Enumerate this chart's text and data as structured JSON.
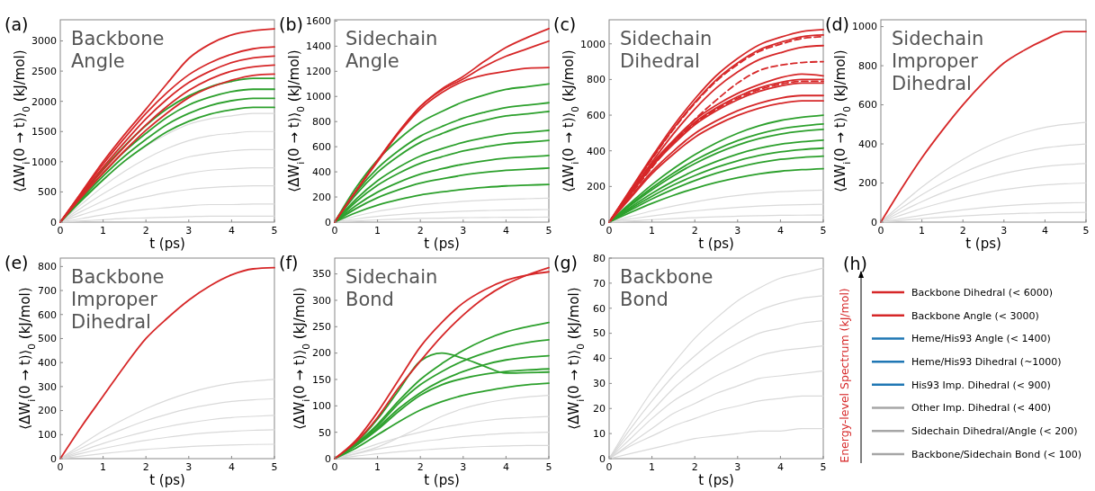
{
  "chart_data": [
    {
      "type": "line",
      "title": "(a)",
      "subtitle": "Backbone Angle",
      "xlabel": "t (ps)",
      "ylabel": "⟨ΔW$_{i}$(0 → t)⟩$_{0}$ (kJ/mol)",
      "x": [
        0,
        0.5,
        1,
        1.5,
        2,
        2.5,
        3,
        3.5,
        4,
        4.5,
        5
      ],
      "xlim": [
        0,
        5
      ],
      "xticks": [
        0,
        1,
        2,
        3,
        4,
        5
      ],
      "ylim": [
        0,
        3350
      ],
      "yticks": [
        0,
        500,
        1000,
        1500,
        2000,
        2500,
        3000
      ],
      "series": [
        {
          "color": "#d9d9d9",
          "values": [
            0,
            360,
            700,
            1010,
            1260,
            1460,
            1620,
            1710,
            1760,
            1800,
            1800
          ]
        },
        {
          "color": "#d9d9d9",
          "values": [
            0,
            300,
            590,
            840,
            1050,
            1220,
            1350,
            1430,
            1470,
            1500,
            1500
          ]
        },
        {
          "color": "#d9d9d9",
          "values": [
            0,
            240,
            470,
            670,
            840,
            970,
            1080,
            1140,
            1180,
            1200,
            1200
          ]
        },
        {
          "color": "#d9d9d9",
          "values": [
            0,
            180,
            350,
            500,
            630,
            730,
            810,
            860,
            880,
            900,
            900
          ]
        },
        {
          "color": "#d9d9d9",
          "values": [
            0,
            120,
            230,
            340,
            420,
            490,
            540,
            570,
            590,
            600,
            600
          ]
        },
        {
          "color": "#d9d9d9",
          "values": [
            0,
            60,
            120,
            170,
            210,
            240,
            270,
            290,
            290,
            300,
            300
          ]
        },
        {
          "color": "#d9d9d9",
          "values": [
            0,
            20,
            40,
            60,
            70,
            80,
            90,
            100,
            100,
            100,
            100
          ]
        },
        {
          "color": "#2ca02c",
          "values": [
            0,
            450,
            880,
            1260,
            1600,
            1880,
            2090,
            2240,
            2330,
            2380,
            2380
          ]
        },
        {
          "color": "#2ca02c",
          "values": [
            0,
            420,
            810,
            1170,
            1470,
            1740,
            1940,
            2070,
            2160,
            2200,
            2200
          ]
        },
        {
          "color": "#2ca02c",
          "values": [
            0,
            390,
            760,
            1090,
            1370,
            1620,
            1800,
            1930,
            2010,
            2050,
            2050
          ]
        },
        {
          "color": "#2ca02c",
          "values": [
            0,
            360,
            700,
            1010,
            1270,
            1500,
            1670,
            1790,
            1860,
            1900,
            1900
          ]
        },
        {
          "color": "#d62728",
          "values": [
            0,
            500,
            1000,
            1450,
            1870,
            2300,
            2710,
            2950,
            3100,
            3170,
            3200
          ]
        },
        {
          "color": "#d62728",
          "values": [
            0,
            490,
            960,
            1390,
            1800,
            2150,
            2440,
            2640,
            2780,
            2870,
            2900
          ]
        },
        {
          "color": "#d62728",
          "values": [
            0,
            470,
            910,
            1320,
            1710,
            2040,
            2310,
            2500,
            2640,
            2720,
            2750
          ]
        },
        {
          "color": "#d62728",
          "values": [
            0,
            440,
            860,
            1250,
            1610,
            1920,
            2180,
            2370,
            2500,
            2570,
            2600
          ]
        },
        {
          "color": "#d62728",
          "values": [
            0,
            420,
            810,
            1180,
            1520,
            1810,
            2060,
            2230,
            2350,
            2430,
            2450
          ]
        }
      ]
    },
    {
      "type": "line",
      "title": "(b)",
      "subtitle": "Sidechain Angle",
      "xlabel": "t (ps)",
      "ylabel": "⟨ΔW$_{i}$(0 → t)⟩$_{0}$ (kJ/mol)",
      "x": [
        0,
        0.5,
        1,
        1.5,
        2,
        2.5,
        3,
        3.5,
        4,
        4.5,
        5
      ],
      "xlim": [
        0,
        5
      ],
      "xticks": [
        0,
        1,
        2,
        3,
        4,
        5
      ],
      "ylim": [
        0,
        1610
      ],
      "yticks": [
        0,
        200,
        400,
        600,
        800,
        1000,
        1200,
        1400,
        1600
      ],
      "series": [
        {
          "color": "#d9d9d9",
          "values": [
            0,
            48,
            86,
            114,
            137,
            152,
            165,
            175,
            182,
            186,
            190
          ]
        },
        {
          "color": "#d9d9d9",
          "values": [
            0,
            25,
            45,
            60,
            72,
            80,
            87,
            92,
            96,
            98,
            100
          ]
        },
        {
          "color": "#d9d9d9",
          "values": [
            0,
            10,
            18,
            24,
            29,
            32,
            35,
            37,
            38,
            39,
            40
          ]
        },
        {
          "color": "#2ca02c",
          "values": [
            0,
            275,
            495,
            660,
            792,
            880,
            957,
            1012,
            1056,
            1078,
            1100
          ]
        },
        {
          "color": "#2ca02c",
          "values": [
            0,
            238,
            428,
            570,
            684,
            760,
            827,
            874,
            912,
            931,
            950
          ]
        },
        {
          "color": "#2ca02c",
          "values": [
            0,
            220,
            396,
            528,
            634,
            704,
            766,
            810,
            845,
            862,
            880
          ]
        },
        {
          "color": "#2ca02c",
          "values": [
            0,
            183,
            329,
            438,
            526,
            584,
            635,
            672,
            701,
            715,
            730
          ]
        },
        {
          "color": "#2ca02c",
          "values": [
            0,
            163,
            293,
            390,
            468,
            520,
            566,
            598,
            624,
            637,
            650
          ]
        },
        {
          "color": "#2ca02c",
          "values": [
            0,
            133,
            239,
            318,
            382,
            424,
            461,
            488,
            509,
            519,
            530
          ]
        },
        {
          "color": "#2ca02c",
          "values": [
            0,
            108,
            194,
            258,
            310,
            344,
            374,
            396,
            413,
            421,
            430
          ]
        },
        {
          "color": "#2ca02c",
          "values": [
            0,
            75,
            135,
            180,
            216,
            240,
            261,
            276,
            288,
            294,
            300
          ]
        },
        {
          "color": "#d62728",
          "values": [
            0,
            250,
            490,
            720,
            920,
            1060,
            1160,
            1280,
            1390,
            1470,
            1540
          ]
        },
        {
          "color": "#d62728",
          "values": [
            0,
            250,
            490,
            720,
            920,
            1050,
            1140,
            1240,
            1320,
            1380,
            1440
          ]
        },
        {
          "color": "#d62728",
          "values": [
            0,
            245,
            480,
            710,
            900,
            1030,
            1120,
            1170,
            1200,
            1225,
            1230
          ]
        }
      ]
    },
    {
      "type": "line",
      "title": "(c)",
      "subtitle": "Sidechain Dihedral",
      "xlabel": "t (ps)",
      "ylabel": "⟨ΔW$_{i}$(0 → t)⟩$_{0}$ (kJ/mol)",
      "x": [
        0,
        0.5,
        1,
        1.5,
        2,
        2.5,
        3,
        3.5,
        4,
        4.5,
        5
      ],
      "xlim": [
        0,
        5
      ],
      "xticks": [
        0,
        1,
        2,
        3,
        4,
        5
      ],
      "ylim": [
        0,
        1135
      ],
      "yticks": [
        0,
        200,
        400,
        600,
        800,
        1000
      ],
      "series": [
        {
          "color": "#d9d9d9",
          "values": [
            0,
            32,
            63,
            90,
            113,
            133,
            149,
            162,
            171,
            176,
            180
          ]
        },
        {
          "color": "#d9d9d9",
          "values": [
            0,
            18,
            35,
            50,
            63,
            74,
            83,
            90,
            95,
            98,
            100
          ]
        },
        {
          "color": "#d9d9d9",
          "values": [
            0,
            7,
            14,
            20,
            25,
            30,
            33,
            36,
            38,
            39,
            40
          ]
        },
        {
          "color": "#2ca02c",
          "values": [
            0,
            108,
            210,
            300,
            378,
            444,
            498,
            540,
            570,
            588,
            600
          ]
        },
        {
          "color": "#2ca02c",
          "values": [
            0,
            99,
            193,
            275,
            347,
            407,
            457,
            495,
            523,
            539,
            550
          ]
        },
        {
          "color": "#2ca02c",
          "values": [
            0,
            94,
            182,
            260,
            328,
            385,
            432,
            468,
            494,
            510,
            520
          ]
        },
        {
          "color": "#2ca02c",
          "values": [
            0,
            83,
            161,
            230,
            290,
            340,
            382,
            414,
            437,
            451,
            460
          ]
        },
        {
          "color": "#2ca02c",
          "values": [
            0,
            75,
            145,
            208,
            261,
            307,
            344,
            374,
            394,
            407,
            415
          ]
        },
        {
          "color": "#2ca02c",
          "values": [
            0,
            67,
            130,
            185,
            233,
            274,
            307,
            333,
            352,
            363,
            370
          ]
        },
        {
          "color": "#2ca02c",
          "values": [
            0,
            54,
            105,
            150,
            189,
            222,
            249,
            270,
            285,
            294,
            300
          ]
        },
        {
          "color": "#d62728",
          "values": [
            0,
            184,
            367,
            540,
            691,
            821,
            918,
            994,
            1037,
            1069,
            1080
          ]
        },
        {
          "color": "#d62728",
          "values": [
            0,
            179,
            357,
            525,
            672,
            798,
            893,
            966,
            1008,
            1040,
            1050
          ]
        },
        {
          "color": "#d62728",
          "values": [
            0,
            168,
            337,
            495,
            634,
            752,
            842,
            911,
            950,
            980,
            990
          ]
        },
        {
          "color": "#d62728",
          "values": [
            0,
            164,
            328,
            459,
            574,
            656,
            722,
            771,
            810,
            830,
            820
          ]
        },
        {
          "color": "#d62728",
          "values": [
            0,
            160,
            320,
            448,
            560,
            640,
            704,
            752,
            784,
            800,
            800
          ]
        },
        {
          "color": "#d62728",
          "values": [
            0,
            156,
            312,
            437,
            546,
            624,
            686,
            733,
            764,
            780,
            780
          ]
        },
        {
          "color": "#d62728",
          "values": [
            0,
            142,
            284,
            398,
            497,
            568,
            625,
            667,
            696,
            710,
            710
          ]
        },
        {
          "color": "#d62728",
          "values": [
            0,
            136,
            272,
            381,
            476,
            544,
            598,
            639,
            666,
            680,
            680
          ]
        },
        {
          "color": "#d62728",
          "line_style": "dashed",
          "values": [
            0,
            177,
            354,
            520,
            666,
            790,
            884,
            957,
            998,
            1030,
            1040
          ]
        },
        {
          "color": "#d62728",
          "line_style": "dashed",
          "values": [
            0,
            153,
            306,
            450,
            576,
            684,
            780,
            850,
            880,
            895,
            900
          ]
        },
        {
          "color": "#d62728",
          "line_style": "dashed",
          "values": [
            0,
            158,
            316,
            442,
            553,
            632,
            695,
            743,
            774,
            790,
            790
          ]
        }
      ]
    },
    {
      "type": "line",
      "title": "(d)",
      "subtitle": "Sidechain Improper Dihedral",
      "xlabel": "t (ps)",
      "ylabel": "⟨ΔW$_{i}$(0 → t)⟩$_{0}$ (kJ/mol)",
      "x": [
        0,
        0.5,
        1,
        1.5,
        2,
        2.5,
        3,
        3.5,
        4,
        4.5,
        5
      ],
      "xlim": [
        0,
        5
      ],
      "xticks": [
        0,
        1,
        2,
        3,
        4,
        5
      ],
      "ylim": [
        0,
        1035
      ],
      "yticks": [
        0,
        200,
        400,
        600,
        800,
        1000
      ],
      "series": [
        {
          "color": "#d9d9d9",
          "values": [
            0,
            92,
            179,
            255,
            321,
            377,
            423,
            459,
            485,
            500,
            510
          ]
        },
        {
          "color": "#d9d9d9",
          "values": [
            0,
            72,
            140,
            200,
            252,
            296,
            332,
            360,
            380,
            392,
            400
          ]
        },
        {
          "color": "#d9d9d9",
          "values": [
            0,
            54,
            105,
            150,
            189,
            222,
            249,
            270,
            285,
            294,
            300
          ]
        },
        {
          "color": "#d9d9d9",
          "values": [
            0,
            36,
            70,
            100,
            126,
            148,
            166,
            180,
            190,
            196,
            200
          ]
        },
        {
          "color": "#d9d9d9",
          "values": [
            0,
            18,
            35,
            50,
            63,
            74,
            83,
            90,
            95,
            98,
            100
          ]
        },
        {
          "color": "#d9d9d9",
          "values": [
            0,
            9,
            18,
            25,
            32,
            37,
            42,
            45,
            48,
            49,
            50
          ]
        },
        {
          "color": "#d62728",
          "values": [
            0,
            170,
            329,
            470,
            600,
            715,
            814,
            880,
            933,
            975,
            975
          ]
        }
      ]
    },
    {
      "type": "line",
      "title": "(e)",
      "subtitle": "Backbone Improper Dihedral",
      "xlabel": "t (ps)",
      "ylabel": "⟨ΔW$_{i}$(0 → t)⟩$_{0}$ (kJ/mol)",
      "x": [
        0,
        0.5,
        1,
        1.5,
        2,
        2.5,
        3,
        3.5,
        4,
        4.5,
        5
      ],
      "xlim": [
        0,
        5
      ],
      "xticks": [
        0,
        1,
        2,
        3,
        4,
        5
      ],
      "ylim": [
        0,
        835
      ],
      "yticks": [
        0,
        100,
        200,
        300,
        400,
        500,
        600,
        700,
        800
      ],
      "series": [
        {
          "color": "#d9d9d9",
          "values": [
            0,
            59,
            116,
            165,
            208,
            244,
            274,
            297,
            314,
            323,
            330
          ]
        },
        {
          "color": "#d9d9d9",
          "values": [
            0,
            45,
            88,
            125,
            158,
            185,
            208,
            225,
            238,
            245,
            250
          ]
        },
        {
          "color": "#d9d9d9",
          "values": [
            0,
            32,
            63,
            90,
            113,
            133,
            149,
            162,
            171,
            176,
            180
          ]
        },
        {
          "color": "#d9d9d9",
          "values": [
            0,
            22,
            42,
            60,
            76,
            89,
            100,
            108,
            114,
            118,
            120
          ]
        },
        {
          "color": "#d9d9d9",
          "values": [
            0,
            11,
            21,
            30,
            38,
            44,
            50,
            54,
            57,
            59,
            60
          ]
        },
        {
          "color": "#d62728",
          "values": [
            0,
            135,
            260,
            385,
            500,
            585,
            660,
            720,
            765,
            790,
            795
          ]
        }
      ]
    },
    {
      "type": "line",
      "title": "(f)",
      "subtitle": "Sidechain Bond",
      "xlabel": "t (ps)",
      "ylabel": "⟨ΔW$_{i}$(0 → t)⟩$_{0}$ (kJ/mol)",
      "x": [
        0,
        0.5,
        1,
        1.5,
        2,
        2.5,
        3,
        3.5,
        4,
        4.5,
        5
      ],
      "xlim": [
        0,
        5
      ],
      "xticks": [
        0,
        1,
        2,
        3,
        4,
        5
      ],
      "ylim": [
        0,
        380
      ],
      "yticks": [
        0,
        50,
        100,
        150,
        200,
        250,
        300,
        350
      ],
      "series": [
        {
          "color": "#d9d9d9",
          "values": [
            0,
            10,
            22,
            40,
            60,
            80,
            95,
            105,
            112,
            117,
            120
          ]
        },
        {
          "color": "#d9d9d9",
          "values": [
            0,
            14,
            28,
            40,
            50,
            59,
            66,
            72,
            76,
            78,
            80
          ]
        },
        {
          "color": "#d9d9d9",
          "values": [
            0,
            9,
            18,
            25,
            32,
            37,
            42,
            45,
            48,
            49,
            50
          ]
        },
        {
          "color": "#d9d9d9",
          "values": [
            0,
            5,
            9,
            13,
            16,
            19,
            21,
            23,
            24,
            25,
            25
          ]
        },
        {
          "color": "#2ca02c",
          "values": [
            0,
            28,
            65,
            110,
            150,
            180,
            205,
            225,
            240,
            250,
            258
          ]
        },
        {
          "color": "#2ca02c",
          "values": [
            0,
            27,
            62,
            105,
            140,
            165,
            185,
            200,
            212,
            220,
            225
          ]
        },
        {
          "color": "#2ca02c",
          "values": [
            0,
            25,
            58,
            95,
            125,
            148,
            165,
            178,
            187,
            192,
            195
          ]
        },
        {
          "color": "#2ca02c",
          "values": [
            0,
            30,
            75,
            130,
            185,
            200,
            190,
            175,
            162,
            163,
            164
          ]
        },
        {
          "color": "#2ca02c",
          "values": [
            0,
            25,
            55,
            90,
            120,
            140,
            152,
            160,
            165,
            168,
            170
          ]
        },
        {
          "color": "#2ca02c",
          "values": [
            0,
            20,
            45,
            70,
            92,
            108,
            120,
            128,
            135,
            140,
            143
          ]
        },
        {
          "color": "#d62728",
          "values": [
            0,
            35,
            88,
            150,
            212,
            258,
            295,
            320,
            338,
            348,
            354
          ]
        },
        {
          "color": "#d62728",
          "values": [
            0,
            32,
            78,
            135,
            185,
            232,
            272,
            305,
            330,
            348,
            362
          ]
        }
      ]
    },
    {
      "type": "line",
      "title": "(g)",
      "subtitle": "Backbone Bond",
      "xlabel": "t (ps)",
      "ylabel": "⟨ΔW$_{i}$(0 → t)⟩$_{0}$ (kJ/mol)",
      "x": [
        0,
        0.5,
        1,
        1.5,
        2,
        2.5,
        3,
        3.5,
        4,
        4.5,
        5
      ],
      "xlim": [
        0,
        5
      ],
      "xticks": [
        0,
        1,
        2,
        3,
        4,
        5
      ],
      "ylim": [
        0,
        80
      ],
      "yticks": [
        0,
        10,
        20,
        30,
        40,
        50,
        60,
        70,
        80
      ],
      "series": [
        {
          "color": "#d9d9d9",
          "values": [
            0,
            14,
            27,
            38,
            48,
            56,
            63,
            68,
            72,
            74,
            76
          ]
        },
        {
          "color": "#d9d9d9",
          "values": [
            0,
            12,
            23,
            33,
            41,
            48,
            54,
            59,
            62,
            64,
            65
          ]
        },
        {
          "color": "#d9d9d9",
          "values": [
            0,
            10,
            19,
            28,
            35,
            41,
            46,
            50,
            52,
            54,
            55
          ]
        },
        {
          "color": "#d9d9d9",
          "values": [
            0,
            8,
            16,
            23,
            28,
            33,
            37,
            41,
            43,
            44,
            45
          ]
        },
        {
          "color": "#d9d9d9",
          "values": [
            0,
            6,
            12,
            18,
            22,
            26,
            29,
            32,
            33,
            34,
            35
          ]
        },
        {
          "color": "#d9d9d9",
          "values": [
            0,
            5,
            9,
            13,
            16,
            19,
            21,
            23,
            24,
            25,
            25
          ]
        },
        {
          "color": "#d9d9d9",
          "values": [
            0,
            2,
            4,
            6,
            8,
            9,
            10,
            11,
            11,
            12,
            12
          ]
        }
      ]
    },
    {
      "type": "other",
      "title": "(h)",
      "ylabel": "Energy-level Spectrum (kJ/mol)",
      "categories": [
        "Backbone Dihedral (< 6000)",
        "Backbone Angle (< 3000)",
        "Heme/His93 Angle (< 1400)",
        "Heme/His93 Dihedral (~1000)",
        "His93 Imp. Dihedral (< 900)",
        "Other Imp. Dihedral (< 400)",
        "Sidechain Dihedral/Angle (< 200)",
        "Backbone/Sidechain Bond (< 100)"
      ],
      "colors": [
        "#d62728",
        "#d62728",
        "#1f77b4",
        "#1f77b4",
        "#1f77b4",
        "#a6a6a6",
        "#a6a6a6",
        "#a6a6a6"
      ]
    }
  ]
}
